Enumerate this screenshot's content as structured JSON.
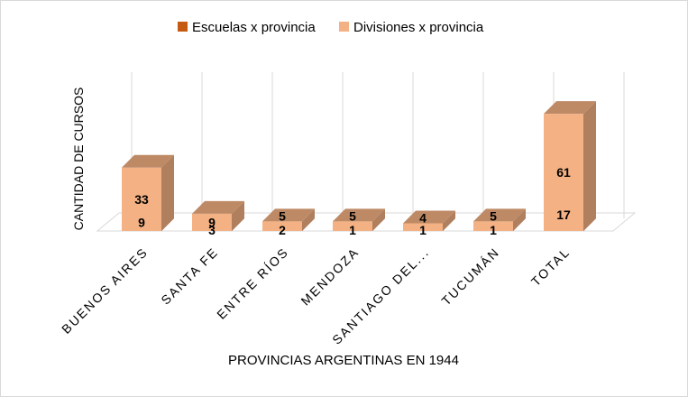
{
  "chart_data": {
    "type": "bar",
    "stacked": true,
    "three_d": true,
    "categories": [
      "BUENOS AIRES",
      "SANTA FE",
      "ENTRE RÍOS",
      "MENDOZA",
      "SANTIAGO DEL...",
      "TUCUMÁN",
      "TOTAL"
    ],
    "series": [
      {
        "name": "Escuelas x provincia",
        "values": [
          9,
          3,
          2,
          1,
          1,
          1,
          17
        ],
        "color": "#c55a11"
      },
      {
        "name": "Divisiones x provincia",
        "values": [
          33,
          9,
          5,
          5,
          4,
          5,
          61
        ],
        "color": "#f4b183"
      }
    ],
    "xlabel": "PROVINCIAS ARGENTINAS EN 1944",
    "ylabel": "CANTIDAD DE CURSOS",
    "ylim": [
      0,
      78
    ],
    "grid": true,
    "data_labels": true,
    "legend_position": "top"
  }
}
